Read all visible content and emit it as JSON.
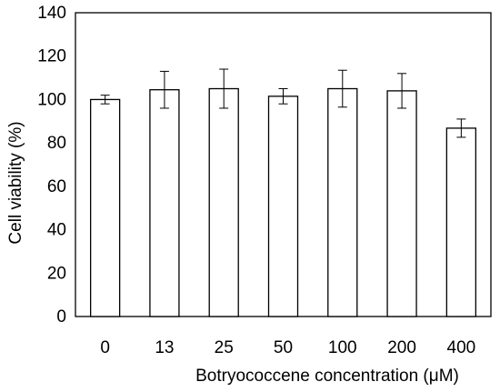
{
  "chart_data": {
    "type": "bar",
    "title": "",
    "xlabel": "Botryococcene concentration (μM)",
    "ylabel": "Cell viability (%)",
    "categories": [
      "0",
      "13",
      "25",
      "50",
      "100",
      "200",
      "400"
    ],
    "values": [
      100,
      104.5,
      105,
      101.5,
      105,
      104,
      86.8
    ],
    "error": [
      2,
      8.5,
      9,
      3.5,
      8.5,
      8,
      4.2
    ],
    "ylim": [
      0,
      140
    ],
    "yticks": [
      0,
      20,
      40,
      60,
      80,
      100,
      120,
      140
    ],
    "grid": false,
    "legend": "none",
    "colors": {
      "bar_fill": "#ffffff",
      "bar_stroke": "#000000",
      "axis": "#000000"
    }
  }
}
